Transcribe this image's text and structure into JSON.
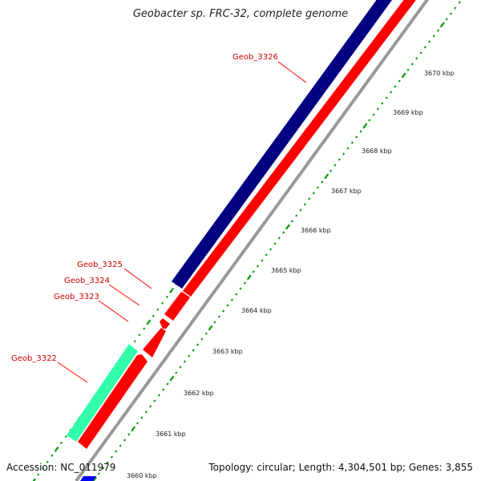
{
  "title": "Geobacter sp. FRC-32, complete genome",
  "accession": "Accession: NC_011979",
  "stats": "Topology: circular; Length: 4,304,501 bp; Genes: 3,855",
  "colors": {
    "forward_cds": "#000080",
    "reverse_cds": "#ff0000",
    "rna": "#33ffaa",
    "other": "#0000ff",
    "backbone": "#999999",
    "ticks": "#009900",
    "label": "#cc0000"
  },
  "scale_labels": [
    "3660 kbp",
    "3661 kbp",
    "3662 kbp",
    "3663 kbp",
    "3664 kbp",
    "3665 kbp",
    "3666 kbp",
    "3667 kbp",
    "3668 kbp",
    "3669 kbp",
    "3670 kbp"
  ],
  "gene_labels": [
    "Geob_3322",
    "Geob_3323",
    "Geob_3324",
    "Geob_3325",
    "Geob_3326"
  ]
}
